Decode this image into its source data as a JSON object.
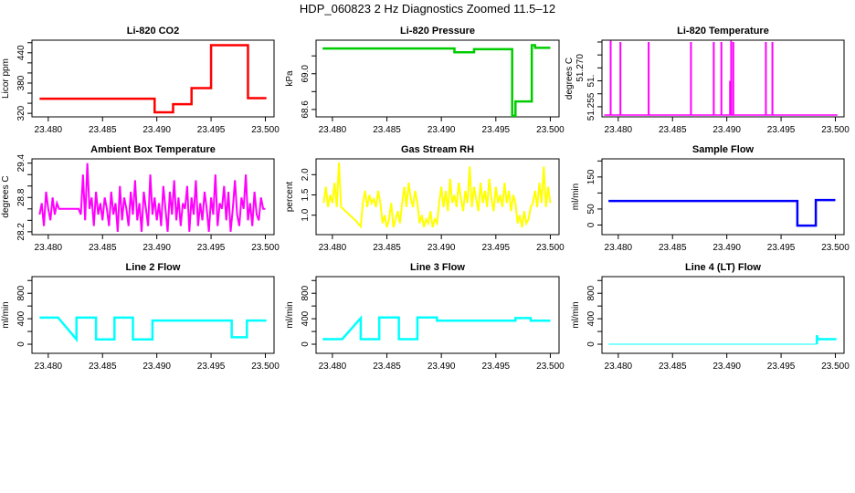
{
  "title": "HDP_060823  2 Hz Diagnostics Zoomed 11.5–12",
  "chart_data": [
    {
      "type": "line",
      "title": "Li-820 CO2",
      "xlabel": "",
      "ylabel": "Licor ppm",
      "color": "#ff0000",
      "step": true,
      "xlim": [
        23.4785,
        23.5008
      ],
      "ylim": [
        313,
        465
      ],
      "xticks": [
        23.48,
        23.485,
        23.49,
        23.495,
        23.5
      ],
      "xticklabels": [
        "23.480",
        "23.485",
        "23.490",
        "23.495",
        "23.500"
      ],
      "yticks": [
        320,
        340,
        360,
        380,
        400,
        420,
        440,
        460
      ],
      "yticklabels": [
        "320",
        "",
        "",
        "380",
        "",
        "",
        "440",
        ""
      ],
      "points": [
        [
          23.4792,
          349
        ],
        [
          23.4898,
          322
        ],
        [
          23.4915,
          338
        ],
        [
          23.4932,
          370
        ],
        [
          23.495,
          455
        ],
        [
          23.4984,
          350
        ],
        [
          23.5001,
          350
        ]
      ]
    },
    {
      "type": "line",
      "title": "Li-820 Pressure",
      "xlabel": "",
      "ylabel": "kPa",
      "color": "#00cc00",
      "step": true,
      "xlim": [
        23.4785,
        23.5008
      ],
      "ylim": [
        68.517,
        69.376
      ],
      "xticks": [
        23.48,
        23.485,
        23.49,
        23.495,
        23.5
      ],
      "xticklabels": [
        "23.480",
        "23.485",
        "23.490",
        "23.495",
        "23.500"
      ],
      "yticks": [
        68.6,
        68.8,
        69.0,
        69.2
      ],
      "yticklabels": [
        "68.6",
        "",
        "69.0",
        ""
      ],
      "points": [
        [
          23.4791,
          69.283
        ],
        [
          23.4912,
          69.24
        ],
        [
          23.493,
          69.275
        ],
        [
          23.4965,
          68.53
        ],
        [
          23.4968,
          68.69
        ],
        [
          23.4983,
          69.32
        ],
        [
          23.4986,
          69.29
        ],
        [
          23.5,
          69.29
        ]
      ]
    },
    {
      "type": "line",
      "title": "Li-820 Temperature",
      "xlabel": "",
      "ylabel": "degrees C",
      "color": "#ff00ff",
      "xlim": [
        23.4785,
        23.5008
      ],
      "ylim": [
        51.2511,
        51.2807
      ],
      "xticks": [
        23.48,
        23.485,
        23.49,
        23.495,
        23.5
      ],
      "xticklabels": [
        "23.480",
        "23.485",
        "23.490",
        "23.495",
        "23.500"
      ],
      "yticks": [
        51.255,
        51.26,
        51.265,
        51.27,
        51.275,
        51.28
      ],
      "yticklabels": [
        "51.255",
        "",
        "51.",
        "51.270",
        "",
        ""
      ],
      "baseline": 51.2518,
      "x_range": [
        23.4787,
        23.5002
      ],
      "spikes": [
        [
          23.4793,
          51.2805
        ],
        [
          23.4802,
          51.28
        ],
        [
          23.4828,
          51.28
        ],
        [
          23.4867,
          51.28
        ],
        [
          23.4888,
          51.28
        ],
        [
          23.4895,
          51.28
        ],
        [
          23.4903,
          51.265
        ],
        [
          23.4904,
          51.2805
        ],
        [
          23.4906,
          51.28
        ],
        [
          23.4936,
          51.28
        ],
        [
          23.4942,
          51.28
        ]
      ]
    },
    {
      "type": "line",
      "title": "Ambient Box Temperature",
      "xlabel": "",
      "ylabel": "degrees C",
      "color": "#ff00ff",
      "xlim": [
        23.4785,
        23.5008
      ],
      "ylim": [
        28.15,
        29.475
      ],
      "xticks": [
        23.48,
        23.485,
        23.49,
        23.495,
        23.5
      ],
      "xticklabels": [
        "23.480",
        "23.485",
        "23.490",
        "23.495",
        "23.500"
      ],
      "yticks": [
        28.2,
        28.4,
        28.6,
        28.8,
        29.0,
        29.2,
        29.4
      ],
      "yticklabels": [
        "28.2",
        "",
        "",
        "28.8",
        "",
        "",
        "29.4"
      ],
      "x_start": 23.4792,
      "x_step": 0.0002,
      "values": [
        28.5,
        28.7,
        28.3,
        28.9,
        28.6,
        28.4,
        28.8,
        28.5,
        28.7,
        28.6,
        28.6,
        28.6,
        28.6,
        28.6,
        28.6,
        28.6,
        28.6,
        28.6,
        28.6,
        28.5,
        29.2,
        28.4,
        29.4,
        28.6,
        28.8,
        28.3,
        28.9,
        28.5,
        28.7,
        28.4,
        28.8,
        28.6,
        28.3,
        28.9,
        28.5,
        28.7,
        28.2,
        29.0,
        28.4,
        28.8,
        28.6,
        28.3,
        28.9,
        28.5,
        29.1,
        28.4,
        28.7,
        28.2,
        28.9,
        28.6,
        28.3,
        29.2,
        28.5,
        28.8,
        28.4,
        28.7,
        28.3,
        29.0,
        28.6,
        28.2,
        28.9,
        28.5,
        29.1,
        28.4,
        28.8,
        28.3,
        28.7,
        28.6,
        29.0,
        28.2,
        28.8,
        28.5,
        29.1,
        28.3,
        28.7,
        28.4,
        28.9,
        28.6,
        28.2,
        28.8,
        28.5,
        29.2,
        28.3,
        28.7,
        28.6,
        29.0,
        28.4,
        28.9,
        28.2,
        28.6,
        29.1,
        28.5,
        28.3,
        28.8,
        28.6,
        29.2,
        28.4,
        28.7,
        28.3,
        28.9,
        28.5,
        28.4,
        28.8,
        28.6,
        28.6
      ]
    },
    {
      "type": "line",
      "title": "Gas Stream RH",
      "xlabel": "",
      "ylabel": "percent",
      "color": "#ffff00",
      "xlim": [
        23.4785,
        23.5008
      ],
      "ylim": [
        0.52,
        2.39
      ],
      "xticks": [
        23.48,
        23.485,
        23.49,
        23.495,
        23.5
      ],
      "xticklabels": [
        "23.480",
        "23.485",
        "23.490",
        "23.495",
        "23.500"
      ],
      "yticks": [
        1.0,
        1.5,
        2.0
      ],
      "yticklabels": [
        "1.0",
        "1.5",
        "2.0"
      ],
      "x_start": 23.4792,
      "x_step": 0.0002,
      "values": [
        1.3,
        1.7,
        1.2,
        1.5,
        1.3,
        1.8,
        1.2,
        2.3,
        1.2,
        1.15,
        1.1,
        1.05,
        1.0,
        0.95,
        0.9,
        0.85,
        0.78,
        0.72,
        1.3,
        1.6,
        1.2,
        1.5,
        1.3,
        1.4,
        1.2,
        1.6,
        1.3,
        0.8,
        1.0,
        0.7,
        0.9,
        1.3,
        0.7,
        0.9,
        1.1,
        0.8,
        1.3,
        1.7,
        1.2,
        1.8,
        1.4,
        1.2,
        1.6,
        1.3,
        0.8,
        1.0,
        0.7,
        0.9,
        0.8,
        1.1,
        0.7,
        0.9,
        0.8,
        1.3,
        1.7,
        1.2,
        1.6,
        1.1,
        1.9,
        1.3,
        1.5,
        1.2,
        1.8,
        1.4,
        1.1,
        1.6,
        1.3,
        2.2,
        1.2,
        1.7,
        1.4,
        1.1,
        1.8,
        1.3,
        1.6,
        1.2,
        1.9,
        1.4,
        1.1,
        1.7,
        1.3,
        1.5,
        1.2,
        1.8,
        1.3,
        1.6,
        1.1,
        1.5,
        1.3,
        0.8,
        1.0,
        0.7,
        1.1,
        0.8,
        0.9,
        1.2,
        1.3,
        1.6,
        1.2,
        1.8,
        1.3,
        2.2,
        1.2,
        1.7,
        1.3
      ]
    },
    {
      "type": "line",
      "title": "Sample Flow",
      "xlabel": "",
      "ylabel": "ml/min",
      "color": "#0000ff",
      "step": true,
      "xlim": [
        23.4785,
        23.5008
      ],
      "ylim": [
        -30,
        206.6
      ],
      "xticks": [
        23.48,
        23.485,
        23.49,
        23.495,
        23.5
      ],
      "xticklabels": [
        "23.480",
        "23.485",
        "23.490",
        "23.495",
        "23.500"
      ],
      "yticks": [
        0,
        50,
        100,
        150,
        200
      ],
      "yticklabels": [
        "0",
        "50",
        "",
        "150",
        ""
      ],
      "points": [
        [
          23.4791,
          75
        ],
        [
          23.4965,
          -2
        ],
        [
          23.4982,
          78
        ],
        [
          23.5,
          78
        ]
      ]
    },
    {
      "type": "line",
      "title": "Line 2 Flow",
      "xlabel": "",
      "ylabel": "ml/min",
      "color": "#00ffff",
      "xlim": [
        23.4785,
        23.5008
      ],
      "ylim": [
        -143,
        1061
      ],
      "xticks": [
        23.48,
        23.485,
        23.49,
        23.495,
        23.5
      ],
      "xticklabels": [
        "23.480",
        "23.485",
        "23.490",
        "23.495",
        "23.500"
      ],
      "yticks": [
        0,
        200,
        400,
        600,
        800,
        1000
      ],
      "yticklabels": [
        "0",
        "",
        "400",
        "",
        "800",
        ""
      ],
      "points": [
        [
          23.4792,
          418
        ],
        [
          23.4809,
          418
        ],
        [
          23.4826,
          76
        ],
        [
          23.4826,
          418
        ],
        [
          23.4844,
          418
        ],
        [
          23.4844,
          76
        ],
        [
          23.4861,
          76
        ],
        [
          23.4861,
          418
        ],
        [
          23.4878,
          418
        ],
        [
          23.4878,
          76
        ],
        [
          23.4896,
          76
        ],
        [
          23.4896,
          371
        ],
        [
          23.4969,
          371
        ],
        [
          23.4969,
          110
        ],
        [
          23.4983,
          110
        ],
        [
          23.4983,
          371
        ],
        [
          23.5001,
          371
        ]
      ]
    },
    {
      "type": "line",
      "title": "Line 3 Flow",
      "xlabel": "",
      "ylabel": "ml/min",
      "color": "#00ffff",
      "xlim": [
        23.4785,
        23.5008
      ],
      "ylim": [
        -143,
        1061
      ],
      "xticks": [
        23.48,
        23.485,
        23.49,
        23.495,
        23.5
      ],
      "xticklabels": [
        "23.480",
        "23.485",
        "23.490",
        "23.495",
        "23.500"
      ],
      "yticks": [
        0,
        200,
        400,
        600,
        800,
        1000
      ],
      "yticklabels": [
        "0",
        "",
        "400",
        "",
        "800",
        ""
      ],
      "points": [
        [
          23.4791,
          80
        ],
        [
          23.4809,
          80
        ],
        [
          23.4826,
          410
        ],
        [
          23.4826,
          80
        ],
        [
          23.4843,
          80
        ],
        [
          23.4843,
          420
        ],
        [
          23.4861,
          420
        ],
        [
          23.4861,
          80
        ],
        [
          23.4878,
          80
        ],
        [
          23.4878,
          420
        ],
        [
          23.4896,
          420
        ],
        [
          23.4896,
          370
        ],
        [
          23.4968,
          370
        ],
        [
          23.4968,
          410
        ],
        [
          23.4982,
          410
        ],
        [
          23.4982,
          370
        ],
        [
          23.5,
          370
        ]
      ]
    },
    {
      "type": "line",
      "title": "Line 4 (LT) Flow",
      "xlabel": "",
      "ylabel": "ml/min",
      "color": "#00ffff",
      "xlim": [
        23.4785,
        23.5008
      ],
      "ylim": [
        -143,
        1061
      ],
      "xticks": [
        23.48,
        23.485,
        23.49,
        23.495,
        23.5
      ],
      "xticklabels": [
        "23.480",
        "23.485",
        "23.490",
        "23.495",
        "23.500"
      ],
      "yticks": [
        0,
        200,
        400,
        600,
        800,
        1000
      ],
      "yticklabels": [
        "0",
        "",
        "400",
        "",
        "800",
        ""
      ],
      "points": [
        [
          23.4791,
          0
        ],
        [
          23.4983,
          0
        ],
        [
          23.4983,
          140
        ],
        [
          23.4984,
          80
        ],
        [
          23.5001,
          80
        ]
      ]
    }
  ]
}
